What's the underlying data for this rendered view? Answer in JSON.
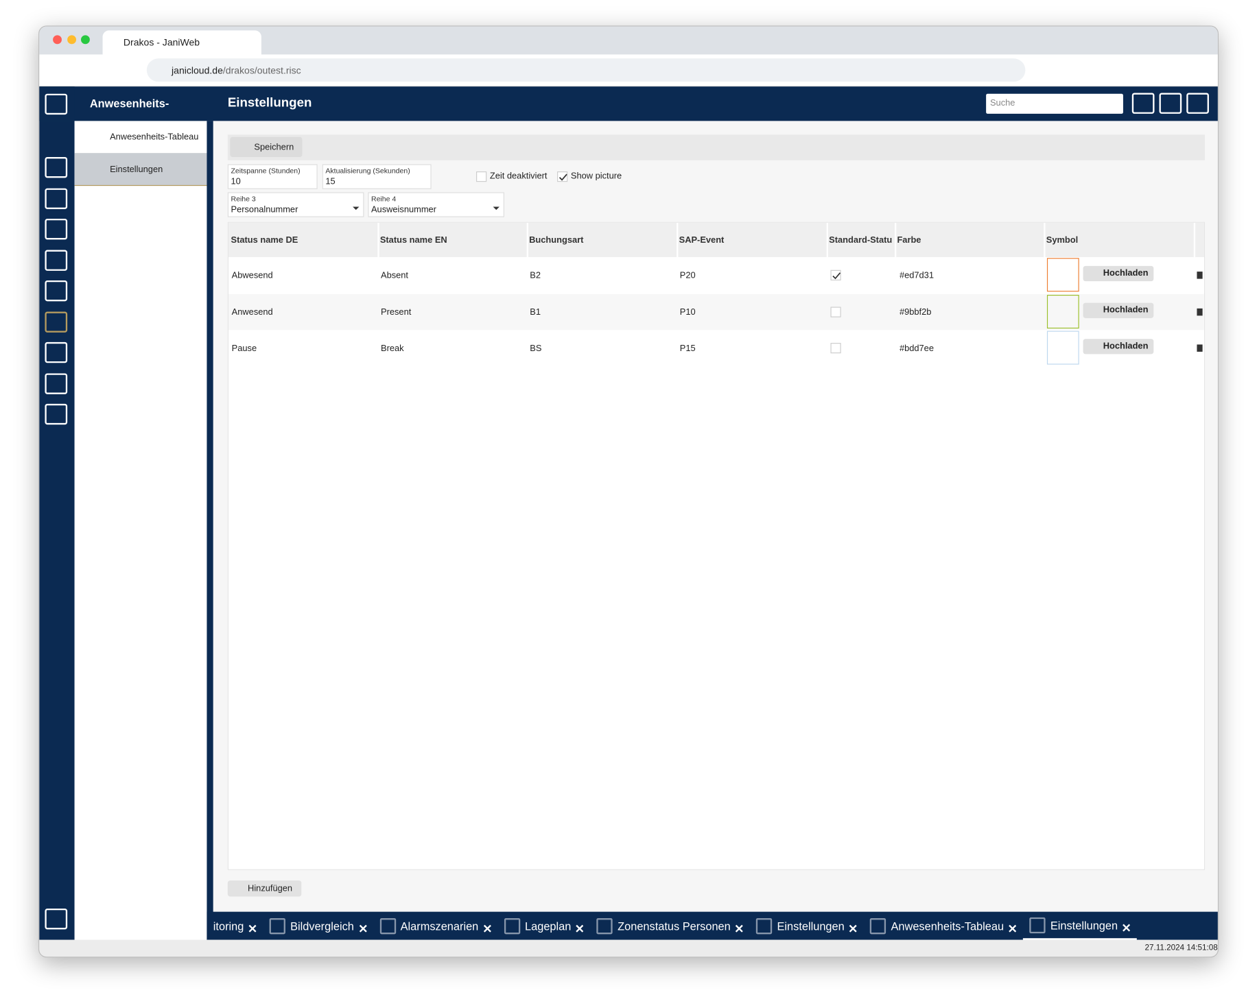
{
  "browser": {
    "tab_title": "Drakos - JaniWeb",
    "url_host": "janicloud.de",
    "url_path": "/drakos/outest.risc"
  },
  "app_header": {
    "module": "Anwesenheits-",
    "page_title": "Einstellungen",
    "search_placeholder": "Suche"
  },
  "side_menu": [
    "Anwesenheits-Tableau",
    "Einstellungen"
  ],
  "toolbar": {
    "save": "Speichern"
  },
  "form": {
    "fields": [
      {
        "label": "Zeitspanne (Stunden)",
        "value": "10"
      },
      {
        "label": "Aktualisierung (Sekunden)",
        "value": "15"
      }
    ],
    "checkboxes": [
      {
        "label": "Zeit deaktiviert",
        "checked": false
      },
      {
        "label": "Show picture",
        "checked": true
      }
    ],
    "selects": [
      {
        "label": "Reihe 3",
        "value": "Personalnummer"
      },
      {
        "label": "Reihe 4",
        "value": "Ausweisnummer"
      }
    ]
  },
  "table": {
    "headers": [
      "Status name DE",
      "Status name EN",
      "Buchungsart",
      "SAP-Event",
      "Standard-Status",
      "Farbe",
      "Symbol"
    ],
    "rows": [
      {
        "cells": [
          "Abwesend",
          "Absent",
          "B2",
          "P20"
        ],
        "standard": true,
        "color": "#ed7d31"
      },
      {
        "cells": [
          "Anwesend",
          "Present",
          "B1",
          "P10"
        ],
        "standard": false,
        "color": "#9bbf2b"
      },
      {
        "cells": [
          "Pause",
          "Break",
          "BS",
          "P15"
        ],
        "standard": false,
        "color": "#bdd7ee"
      }
    ],
    "upload_label": "Hochladen"
  },
  "add_button": "Hinzufügen",
  "bottom_tabs": [
    "itoring",
    "Bildvergleich",
    "Alarmszenarien",
    "Lageplan",
    "Zonenstatus Personen",
    "Einstellungen",
    "Anwesenheits-Tableau",
    "Einstellungen"
  ],
  "status_bar": {
    "timestamp": "27.11.2024 14:51:08"
  }
}
